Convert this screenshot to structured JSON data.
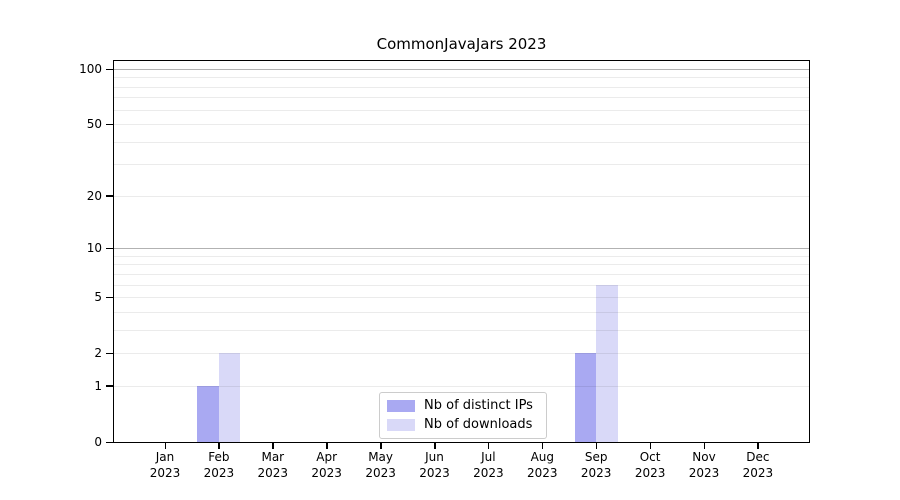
{
  "chart_data": {
    "type": "bar",
    "title": "CommonJavaJars 2023",
    "categories": [
      "Jan",
      "Feb",
      "Mar",
      "Apr",
      "May",
      "Jun",
      "Jul",
      "Aug",
      "Sep",
      "Oct",
      "Nov",
      "Dec"
    ],
    "year_label": "2023",
    "series": [
      {
        "name": "Nb of distinct IPs",
        "color": "#a9a9f2",
        "values": [
          0,
          1,
          0,
          0,
          0,
          0,
          0,
          0,
          2,
          0,
          0,
          0
        ]
      },
      {
        "name": "Nb of downloads",
        "color": "#d9d9f8",
        "values": [
          0,
          2,
          0,
          0,
          0,
          0,
          0,
          0,
          6,
          0,
          0,
          0
        ]
      }
    ],
    "yscale": "log1p",
    "ylim": [
      0,
      113
    ],
    "yticks": [
      0,
      1,
      2,
      5,
      10,
      20,
      50,
      100
    ],
    "grid": {
      "minor_values": [
        1,
        2,
        3,
        4,
        5,
        6,
        7,
        8,
        9,
        20,
        30,
        40,
        50,
        60,
        70,
        80,
        90
      ],
      "major_values": [
        10,
        100
      ],
      "minor_color": "rgba(0,0,0,0.08)",
      "major_color": "rgba(0,0,0,0.30)"
    },
    "legend_position": "lower center",
    "axis_color": "#000000",
    "background_color": "#ffffff"
  }
}
